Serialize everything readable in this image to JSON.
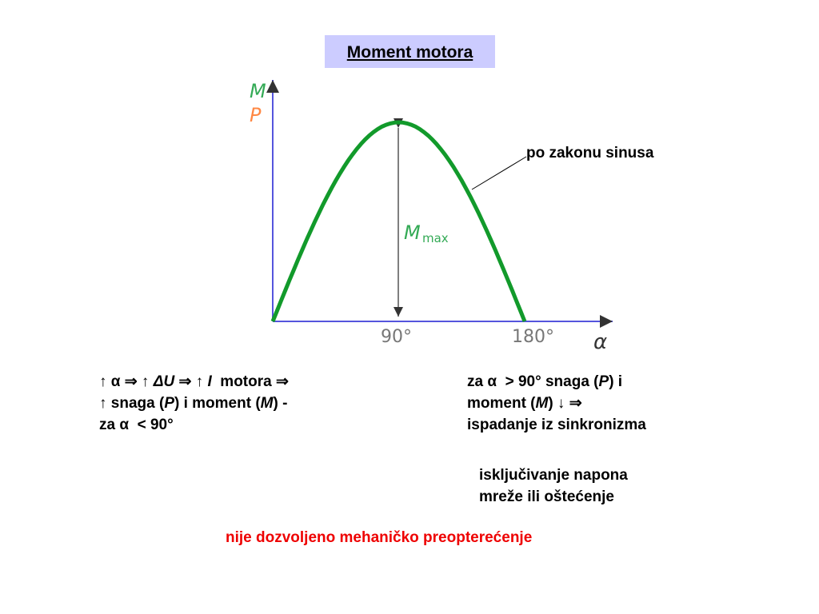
{
  "title": "Moment motora",
  "diagram": {
    "y_label_top": "M",
    "y_label_bottom": "P",
    "x_label": "α",
    "tick_90": "90°",
    "tick_180": "180°",
    "max_label": "M",
    "max_subscript": "max",
    "curve_label": "po zakonu sinusa"
  },
  "left_text": [
    [
      "↑ α ⇒ ↑ ",
      "ΔU",
      " ⇒ ↑ ",
      "I",
      "  motora ⇒"
    ],
    [
      "↑ snaga (",
      "P",
      ") i moment (",
      "M",
      ") -"
    ],
    [
      "za α  < 90°"
    ]
  ],
  "right_text": [
    [
      "za α  > 90° snaga (",
      "P",
      ") i"
    ],
    [
      "moment (",
      "M",
      ") ↓ ⇒"
    ],
    [
      "ispadanje iz sinkronizma"
    ]
  ],
  "note": [
    "isključivanje napona",
    "mreže ili oštećenje"
  ],
  "warning": "nije dozvoljeno mehaničko preopterećenje"
}
